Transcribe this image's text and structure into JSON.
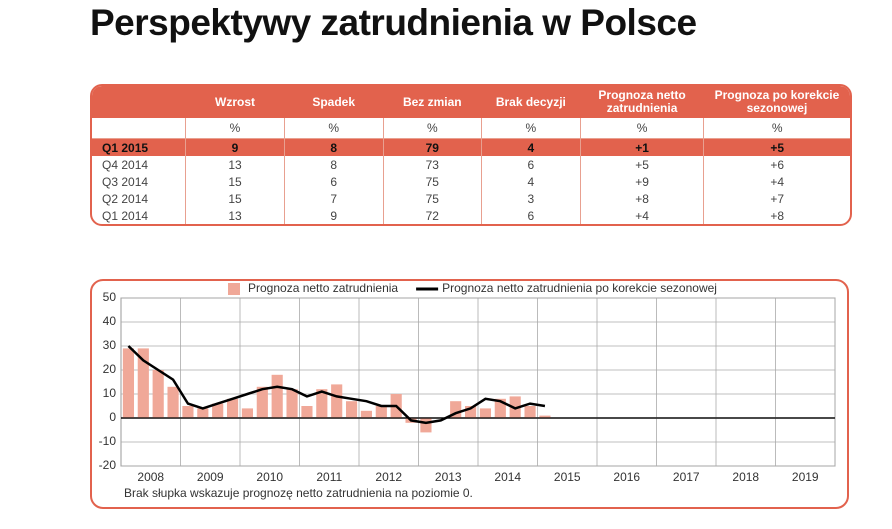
{
  "header": {
    "title": "Perspektywy zatrudnienia w Polsce"
  },
  "table": {
    "columns": [
      "",
      "Wzrost",
      "Spadek",
      "Bez zmian",
      "Brak decyzji",
      "Prognoza netto zatrudnienia",
      "Prognoza po korekcie sezonowej"
    ],
    "units": [
      "",
      "%",
      "%",
      "%",
      "%",
      "%",
      "%"
    ],
    "rows": [
      [
        "Q1 2015",
        "9",
        "8",
        "79",
        "4",
        "+1",
        "+5"
      ],
      [
        "Q4 2014",
        "13",
        "8",
        "73",
        "6",
        "+5",
        "+6"
      ],
      [
        "Q3 2014",
        "15",
        "6",
        "75",
        "4",
        "+9",
        "+4"
      ],
      [
        "Q2 2014",
        "15",
        "7",
        "75",
        "3",
        "+8",
        "+7"
      ],
      [
        "Q1 2014",
        "13",
        "9",
        "72",
        "6",
        "+4",
        "+8"
      ]
    ]
  },
  "chart_data": {
    "type": "combo",
    "x": [
      2008.125,
      2008.375,
      2008.625,
      2008.875,
      2009.125,
      2009.375,
      2009.625,
      2009.875,
      2010.125,
      2010.375,
      2010.625,
      2010.875,
      2011.125,
      2011.375,
      2011.625,
      2011.875,
      2012.125,
      2012.375,
      2012.625,
      2012.875,
      2013.125,
      2013.375,
      2013.625,
      2013.875,
      2014.125,
      2014.375,
      2014.625,
      2014.875,
      2015.125
    ],
    "series": [
      {
        "name": "Prognoza netto zatrudnienia",
        "kind": "bar",
        "color": "#f0a898",
        "values": [
          29,
          29,
          20,
          13,
          5,
          4,
          6,
          8,
          4,
          13,
          18,
          12,
          5,
          12,
          14,
          7,
          3,
          5,
          10,
          -2,
          -6,
          0,
          7,
          5,
          4,
          8,
          9,
          5,
          1
        ]
      },
      {
        "name": "Prognoza netto zatrudnienia po korekcie sezonowej",
        "kind": "line",
        "color": "#000000",
        "values": [
          30,
          24,
          20,
          16,
          6,
          4,
          6,
          8,
          10,
          12,
          13,
          12,
          9,
          11,
          9,
          8,
          7,
          5,
          5,
          -1,
          -2,
          -1,
          2,
          4,
          8,
          7,
          4,
          6,
          5
        ]
      }
    ],
    "xlim": [
      2008,
      2020
    ],
    "xticks": [
      {
        "value": 2008.5,
        "label": "2008"
      },
      {
        "value": 2009.5,
        "label": "2009"
      },
      {
        "value": 2010.5,
        "label": "2010"
      },
      {
        "value": 2011.5,
        "label": "2011"
      },
      {
        "value": 2012.5,
        "label": "2012"
      },
      {
        "value": 2013.5,
        "label": "2013"
      },
      {
        "value": 2014.5,
        "label": "2014"
      },
      {
        "value": 2015.5,
        "label": "2015"
      },
      {
        "value": 2016.5,
        "label": "2016"
      },
      {
        "value": 2017.5,
        "label": "2017"
      },
      {
        "value": 2018.5,
        "label": "2018"
      },
      {
        "value": 2019.5,
        "label": "2019"
      }
    ],
    "ylim": [
      -20,
      50
    ],
    "yticks": [
      -20,
      -10,
      0,
      10,
      20,
      30,
      40,
      50
    ],
    "grid": true,
    "legend": "top",
    "note": "Brak słupka wskazuje prognozę netto zatrudnienia na poziomie 0."
  }
}
